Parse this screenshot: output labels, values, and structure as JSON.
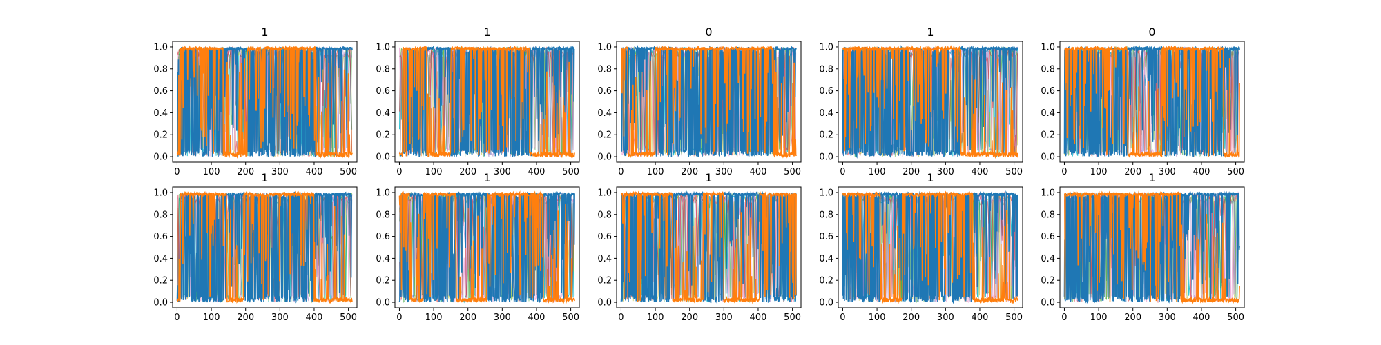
{
  "chart_data": [
    {
      "type": "line",
      "title": "1",
      "xlim": [
        -13,
        525
      ],
      "ylim": [
        -0.05,
        1.05
      ],
      "xticks": [
        "0",
        "100",
        "200",
        "300",
        "400",
        "500"
      ],
      "yticks": [
        "0.0",
        "0.2",
        "0.4",
        "0.6",
        "0.8",
        "1.0"
      ],
      "series": [
        {
          "color": "#1f77b4",
          "segments": [
            [
              0,
              10,
              "lo"
            ],
            [
              10,
              135,
              "mix"
            ],
            [
              135,
              205,
              "hi"
            ],
            [
              205,
              405,
              "mix"
            ],
            [
              405,
              512,
              "hi"
            ]
          ]
        },
        {
          "color": "#ff7f0e",
          "segments": [
            [
              0,
              10,
              "lo"
            ],
            [
              10,
              135,
              "hi"
            ],
            [
              135,
              205,
              "lo"
            ],
            [
              205,
              405,
              "hi"
            ],
            [
              405,
              512,
              "lo"
            ]
          ]
        }
      ]
    },
    {
      "type": "line",
      "title": "1",
      "xlim": [
        -13,
        525
      ],
      "ylim": [
        -0.05,
        1.05
      ],
      "xticks": [
        "0",
        "100",
        "200",
        "300",
        "400",
        "500"
      ],
      "yticks": [
        "0.0",
        "0.2",
        "0.4",
        "0.6",
        "0.8",
        "1.0"
      ],
      "series": [
        {
          "color": "#1f77b4",
          "segments": [
            [
              0,
              10,
              "lo"
            ],
            [
              10,
              80,
              "mix"
            ],
            [
              80,
              150,
              "hi"
            ],
            [
              150,
              380,
              "mix"
            ],
            [
              380,
              512,
              "hi"
            ]
          ]
        },
        {
          "color": "#ff7f0e",
          "segments": [
            [
              0,
              10,
              "lo"
            ],
            [
              10,
              80,
              "hi"
            ],
            [
              80,
              150,
              "lo"
            ],
            [
              150,
              380,
              "hi"
            ],
            [
              380,
              512,
              "lo"
            ]
          ]
        }
      ]
    },
    {
      "type": "line",
      "title": "0",
      "xlim": [
        -13,
        525
      ],
      "ylim": [
        -0.05,
        1.05
      ],
      "xticks": [
        "0",
        "100",
        "200",
        "300",
        "400",
        "500"
      ],
      "yticks": [
        "0.0",
        "0.2",
        "0.4",
        "0.6",
        "0.8",
        "1.0"
      ],
      "series": [
        {
          "color": "#1f77b4",
          "segments": [
            [
              0,
              20,
              "mix"
            ],
            [
              20,
              100,
              "hi"
            ],
            [
              100,
              445,
              "mix"
            ],
            [
              445,
              512,
              "hi"
            ]
          ]
        },
        {
          "color": "#ff7f0e",
          "segments": [
            [
              0,
              20,
              "hi"
            ],
            [
              20,
              100,
              "lo"
            ],
            [
              100,
              445,
              "hi"
            ],
            [
              445,
              512,
              "lo"
            ]
          ]
        }
      ]
    },
    {
      "type": "line",
      "title": "1",
      "xlim": [
        -13,
        525
      ],
      "ylim": [
        -0.05,
        1.05
      ],
      "xticks": [
        "0",
        "100",
        "200",
        "300",
        "400",
        "500"
      ],
      "yticks": [
        "0.0",
        "0.2",
        "0.4",
        "0.6",
        "0.8",
        "1.0"
      ],
      "series": [
        {
          "color": "#1f77b4",
          "segments": [
            [
              0,
              345,
              "mix"
            ],
            [
              345,
              512,
              "hi"
            ]
          ]
        },
        {
          "color": "#ff7f0e",
          "segments": [
            [
              0,
              345,
              "hi"
            ],
            [
              345,
              512,
              "lo"
            ]
          ]
        }
      ]
    },
    {
      "type": "line",
      "title": "0",
      "xlim": [
        -13,
        525
      ],
      "ylim": [
        -0.05,
        1.05
      ],
      "xticks": [
        "0",
        "100",
        "200",
        "300",
        "400",
        "500"
      ],
      "yticks": [
        "0.0",
        "0.2",
        "0.4",
        "0.6",
        "0.8",
        "1.0"
      ],
      "series": [
        {
          "color": "#1f77b4",
          "segments": [
            [
              0,
              185,
              "mix"
            ],
            [
              185,
              285,
              "hi"
            ],
            [
              285,
              465,
              "mix"
            ],
            [
              465,
              512,
              "hi"
            ]
          ]
        },
        {
          "color": "#ff7f0e",
          "segments": [
            [
              0,
              185,
              "hi"
            ],
            [
              185,
              285,
              "lo"
            ],
            [
              285,
              465,
              "hi"
            ],
            [
              465,
              512,
              "lo"
            ]
          ]
        }
      ]
    },
    {
      "type": "line",
      "title": "1",
      "xlim": [
        -13,
        525
      ],
      "ylim": [
        -0.05,
        1.05
      ],
      "xticks": [
        "0",
        "100",
        "200",
        "300",
        "400",
        "500"
      ],
      "yticks": [
        "0.0",
        "0.2",
        "0.4",
        "0.6",
        "0.8",
        "1.0"
      ],
      "series": [
        {
          "color": "#1f77b4",
          "segments": [
            [
              0,
              10,
              "lo"
            ],
            [
              10,
              145,
              "mix"
            ],
            [
              145,
              195,
              "hi"
            ],
            [
              195,
              400,
              "mix"
            ],
            [
              400,
              512,
              "hi"
            ]
          ]
        },
        {
          "color": "#ff7f0e",
          "segments": [
            [
              0,
              10,
              "lo"
            ],
            [
              10,
              145,
              "hi"
            ],
            [
              145,
              195,
              "lo"
            ],
            [
              195,
              400,
              "hi"
            ],
            [
              400,
              512,
              "lo"
            ]
          ]
        }
      ]
    },
    {
      "type": "line",
      "title": "1",
      "xlim": [
        -13,
        525
      ],
      "ylim": [
        -0.05,
        1.05
      ],
      "xticks": [
        "0",
        "100",
        "200",
        "300",
        "400",
        "500"
      ],
      "yticks": [
        "0.0",
        "0.2",
        "0.4",
        "0.6",
        "0.8",
        "1.0"
      ],
      "series": [
        {
          "color": "#1f77b4",
          "segments": [
            [
              0,
              30,
              "mix"
            ],
            [
              30,
              70,
              "hi"
            ],
            [
              70,
              165,
              "mix"
            ],
            [
              165,
              255,
              "hi"
            ],
            [
              255,
              420,
              "mix"
            ],
            [
              420,
              512,
              "hi"
            ]
          ]
        },
        {
          "color": "#ff7f0e",
          "segments": [
            [
              0,
              30,
              "hi"
            ],
            [
              30,
              70,
              "lo"
            ],
            [
              70,
              165,
              "hi"
            ],
            [
              165,
              255,
              "lo"
            ],
            [
              255,
              420,
              "hi"
            ],
            [
              420,
              512,
              "lo"
            ]
          ]
        }
      ]
    },
    {
      "type": "line",
      "title": "1",
      "xlim": [
        -13,
        525
      ],
      "ylim": [
        -0.05,
        1.05
      ],
      "xticks": [
        "0",
        "100",
        "200",
        "300",
        "400",
        "500"
      ],
      "yticks": [
        "0.0",
        "0.2",
        "0.4",
        "0.6",
        "0.8",
        "1.0"
      ],
      "series": [
        {
          "color": "#1f77b4",
          "segments": [
            [
              0,
              150,
              "mix"
            ],
            [
              150,
              240,
              "hi"
            ],
            [
              240,
              300,
              "mix"
            ],
            [
              300,
              405,
              "hi"
            ],
            [
              405,
              512,
              "mix"
            ]
          ]
        },
        {
          "color": "#ff7f0e",
          "segments": [
            [
              0,
              150,
              "hi"
            ],
            [
              150,
              240,
              "lo"
            ],
            [
              240,
              300,
              "hi"
            ],
            [
              300,
              405,
              "lo"
            ],
            [
              405,
              512,
              "hi"
            ]
          ]
        }
      ]
    },
    {
      "type": "line",
      "title": "1",
      "xlim": [
        -13,
        525
      ],
      "ylim": [
        -0.05,
        1.05
      ],
      "xticks": [
        "0",
        "100",
        "200",
        "300",
        "400",
        "500"
      ],
      "yticks": [
        "0.0",
        "0.2",
        "0.4",
        "0.6",
        "0.8",
        "1.0"
      ],
      "series": [
        {
          "color": "#1f77b4",
          "segments": [
            [
              0,
              110,
              "mix"
            ],
            [
              110,
              175,
              "hi"
            ],
            [
              175,
              380,
              "mix"
            ],
            [
              380,
              512,
              "hi"
            ]
          ]
        },
        {
          "color": "#ff7f0e",
          "segments": [
            [
              0,
              110,
              "hi"
            ],
            [
              110,
              175,
              "lo"
            ],
            [
              175,
              380,
              "hi"
            ],
            [
              380,
              512,
              "lo"
            ]
          ]
        }
      ]
    },
    {
      "type": "line",
      "title": "1",
      "xlim": [
        -13,
        525
      ],
      "ylim": [
        -0.05,
        1.05
      ],
      "xticks": [
        "0",
        "100",
        "200",
        "300",
        "400",
        "500"
      ],
      "yticks": [
        "0.0",
        "0.2",
        "0.4",
        "0.6",
        "0.8",
        "1.0"
      ],
      "series": [
        {
          "color": "#1f77b4",
          "segments": [
            [
              0,
              340,
              "mix"
            ],
            [
              340,
              512,
              "hi"
            ]
          ]
        },
        {
          "color": "#ff7f0e",
          "segments": [
            [
              0,
              340,
              "hi"
            ],
            [
              340,
              512,
              "lo"
            ]
          ]
        }
      ]
    }
  ]
}
